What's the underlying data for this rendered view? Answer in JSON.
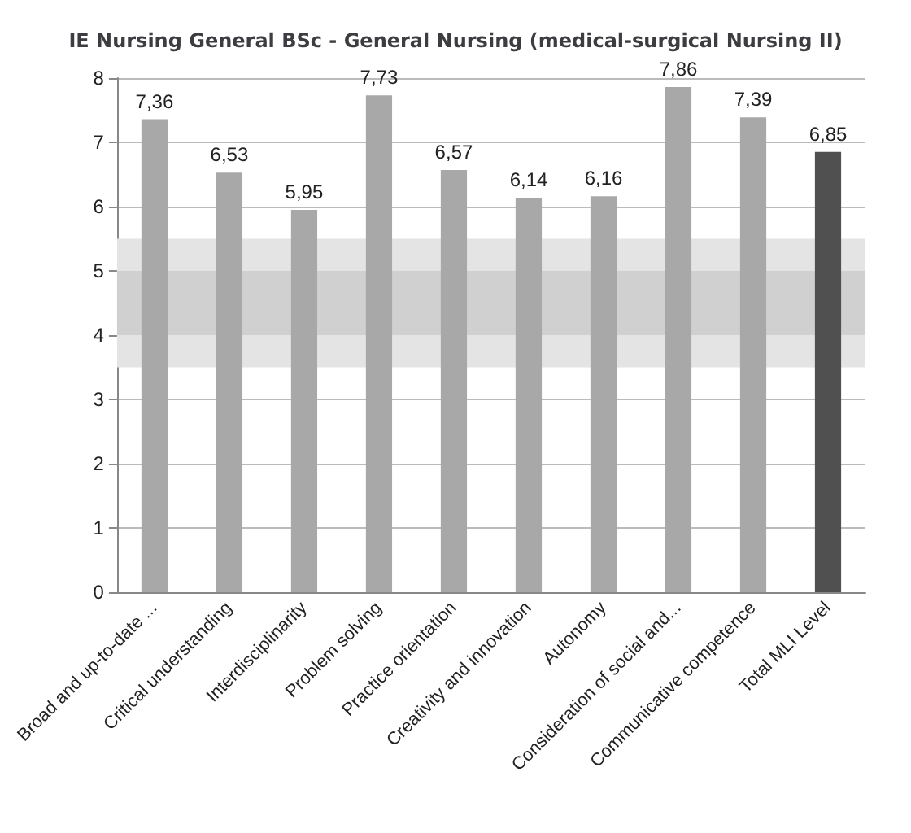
{
  "chart_data": {
    "type": "bar",
    "title": "IE Nursing General BSc - General Nursing (medical-surgical Nursing II)",
    "categories": [
      "Broad and up-to-date ...",
      "Critical understanding",
      "Interdisciplinarity",
      "Problem solving",
      "Practice orientation",
      "Creativity and innovation",
      "Autonomy",
      "Consideration of social and...",
      "Communicative competence",
      "Total MLI Level"
    ],
    "values": [
      7.36,
      6.53,
      5.95,
      7.73,
      6.57,
      6.14,
      6.16,
      7.86,
      7.39,
      6.85
    ],
    "value_labels": [
      "7,36",
      "6,53",
      "5,95",
      "7,73",
      "6,57",
      "6,14",
      "6,16",
      "7,86",
      "7,39",
      "6,85"
    ],
    "colors": [
      "#a8a8a8",
      "#a8a8a8",
      "#a8a8a8",
      "#a8a8a8",
      "#a8a8a8",
      "#a8a8a8",
      "#a8a8a8",
      "#a8a8a8",
      "#a8a8a8",
      "#505050"
    ],
    "ylim": [
      0,
      8
    ],
    "yticks": [
      0,
      1,
      2,
      3,
      4,
      5,
      6,
      7,
      8
    ],
    "grid": "y",
    "bands": [
      {
        "axis": "y",
        "from": 3.5,
        "to": 5.5,
        "color": "#e4e4e4"
      },
      {
        "axis": "y",
        "from": 4,
        "to": 5,
        "color": "#d0d0d0"
      }
    ]
  }
}
